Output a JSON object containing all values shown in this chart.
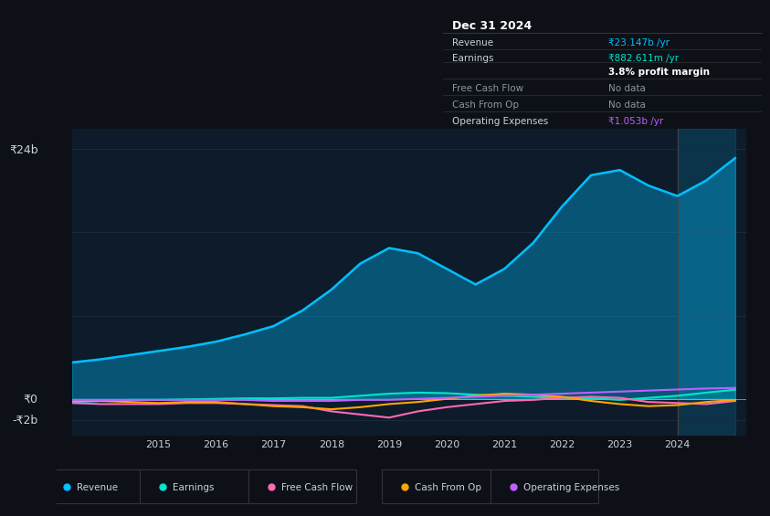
{
  "bg_color": "#0d1117",
  "plot_bg_color": "#0d1b2a",
  "grid_color": "#1e2d3d",
  "text_color": "#c9d1d9",
  "dim_text_color": "#8b949e",
  "years": [
    2013.5,
    2014,
    2014.5,
    2015,
    2015.5,
    2016,
    2016.5,
    2017,
    2017.5,
    2018,
    2018.5,
    2019,
    2019.5,
    2020,
    2020.5,
    2021,
    2021.5,
    2022,
    2022.5,
    2023,
    2023.5,
    2024,
    2024.5,
    2025
  ],
  "revenue": [
    3.5,
    3.8,
    4.2,
    4.6,
    5.0,
    5.5,
    6.2,
    7.0,
    8.5,
    10.5,
    13.0,
    14.5,
    14.0,
    12.5,
    11.0,
    12.5,
    15.0,
    18.5,
    21.5,
    22.0,
    20.5,
    19.5,
    21.0,
    23.147
  ],
  "earnings": [
    -0.3,
    -0.2,
    -0.1,
    -0.1,
    -0.05,
    0.0,
    0.05,
    0.05,
    0.1,
    0.1,
    0.3,
    0.5,
    0.6,
    0.55,
    0.4,
    0.3,
    0.2,
    0.1,
    0.05,
    -0.1,
    0.1,
    0.3,
    0.6,
    0.883
  ],
  "free_cash_flow": [
    -0.4,
    -0.5,
    -0.5,
    -0.5,
    -0.4,
    -0.4,
    -0.5,
    -0.6,
    -0.7,
    -1.2,
    -1.5,
    -1.8,
    -1.2,
    -0.8,
    -0.5,
    -0.2,
    -0.1,
    0.1,
    0.2,
    0.1,
    -0.3,
    -0.4,
    -0.5,
    -0.2
  ],
  "cash_from_op": [
    -0.2,
    -0.2,
    -0.3,
    -0.4,
    -0.3,
    -0.3,
    -0.5,
    -0.7,
    -0.8,
    -1.0,
    -0.8,
    -0.5,
    -0.3,
    0.0,
    0.3,
    0.5,
    0.4,
    0.2,
    -0.2,
    -0.5,
    -0.7,
    -0.6,
    -0.3,
    -0.1
  ],
  "op_expenses": [
    -0.1,
    -0.1,
    -0.1,
    -0.1,
    -0.1,
    -0.1,
    -0.1,
    -0.2,
    -0.2,
    -0.2,
    -0.1,
    -0.1,
    -0.0,
    0.1,
    0.2,
    0.3,
    0.4,
    0.5,
    0.6,
    0.7,
    0.8,
    0.9,
    1.0,
    1.053
  ],
  "revenue_color": "#00bfff",
  "earnings_color": "#00e5cc",
  "fcf_color": "#ff69b4",
  "cash_op_color": "#ffa500",
  "op_exp_color": "#bf5fff",
  "ylabel_24b": "₹24b",
  "ylabel_0": "₹0",
  "ylabel_neg2b": "-₹2b",
  "xticks": [
    2015,
    2016,
    2017,
    2018,
    2019,
    2020,
    2021,
    2022,
    2023,
    2024
  ],
  "info_box": {
    "title": "Dec 31 2024",
    "rows": [
      {
        "label": "Revenue",
        "value": "₹23.147b /yr",
        "value_color": "#00bfff",
        "dim": false
      },
      {
        "label": "Earnings",
        "value": "₹882.611m /yr",
        "value_color": "#00e5cc",
        "dim": false
      },
      {
        "label": "",
        "value": "3.8% profit margin",
        "value_color": "#ffffff",
        "dim": false,
        "bold": true
      },
      {
        "label": "Free Cash Flow",
        "value": "No data",
        "value_color": "#8b949e",
        "dim": true
      },
      {
        "label": "Cash From Op",
        "value": "No data",
        "value_color": "#8b949e",
        "dim": true
      },
      {
        "label": "Operating Expenses",
        "value": "₹1.053b /yr",
        "value_color": "#bf5fff",
        "dim": false
      }
    ]
  },
  "legend_items": [
    {
      "label": "Revenue",
      "color": "#00bfff"
    },
    {
      "label": "Earnings",
      "color": "#00e5cc"
    },
    {
      "label": "Free Cash Flow",
      "color": "#ff69b4"
    },
    {
      "label": "Cash From Op",
      "color": "#ffa500"
    },
    {
      "label": "Operating Expenses",
      "color": "#bf5fff"
    }
  ]
}
